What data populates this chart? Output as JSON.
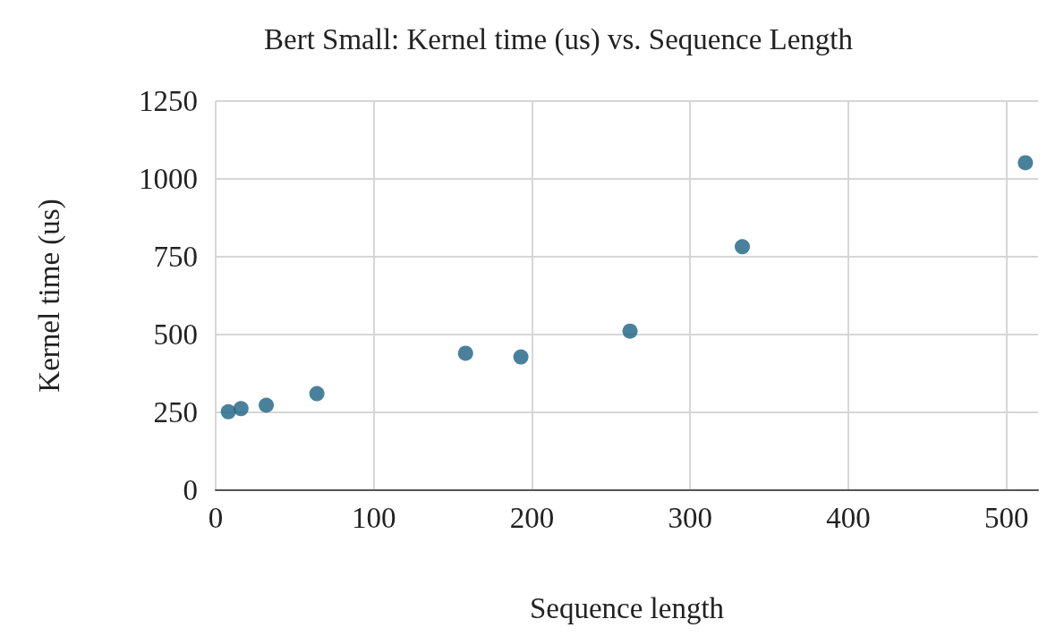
{
  "chart_data": {
    "type": "scatter",
    "title": "Bert Small: Kernel time (us) vs. Sequence Length",
    "xlabel": "Sequence length",
    "ylabel": "Kernel time (us)",
    "x": [
      8,
      16,
      32,
      64,
      158,
      193,
      262,
      333,
      512
    ],
    "series": [
      {
        "color": "#1b6184",
        "values": [
          252,
          262,
          273,
          310,
          440,
          428,
          511,
          782,
          1052
        ]
      }
    ],
    "xlim": [
      0,
      520
    ],
    "xticks": [
      0,
      100,
      200,
      300,
      400,
      500
    ],
    "ylim": [
      0,
      1250
    ],
    "yticks": [
      0,
      250,
      500,
      750,
      1000,
      1250
    ],
    "grid": true,
    "marker": "circle"
  }
}
